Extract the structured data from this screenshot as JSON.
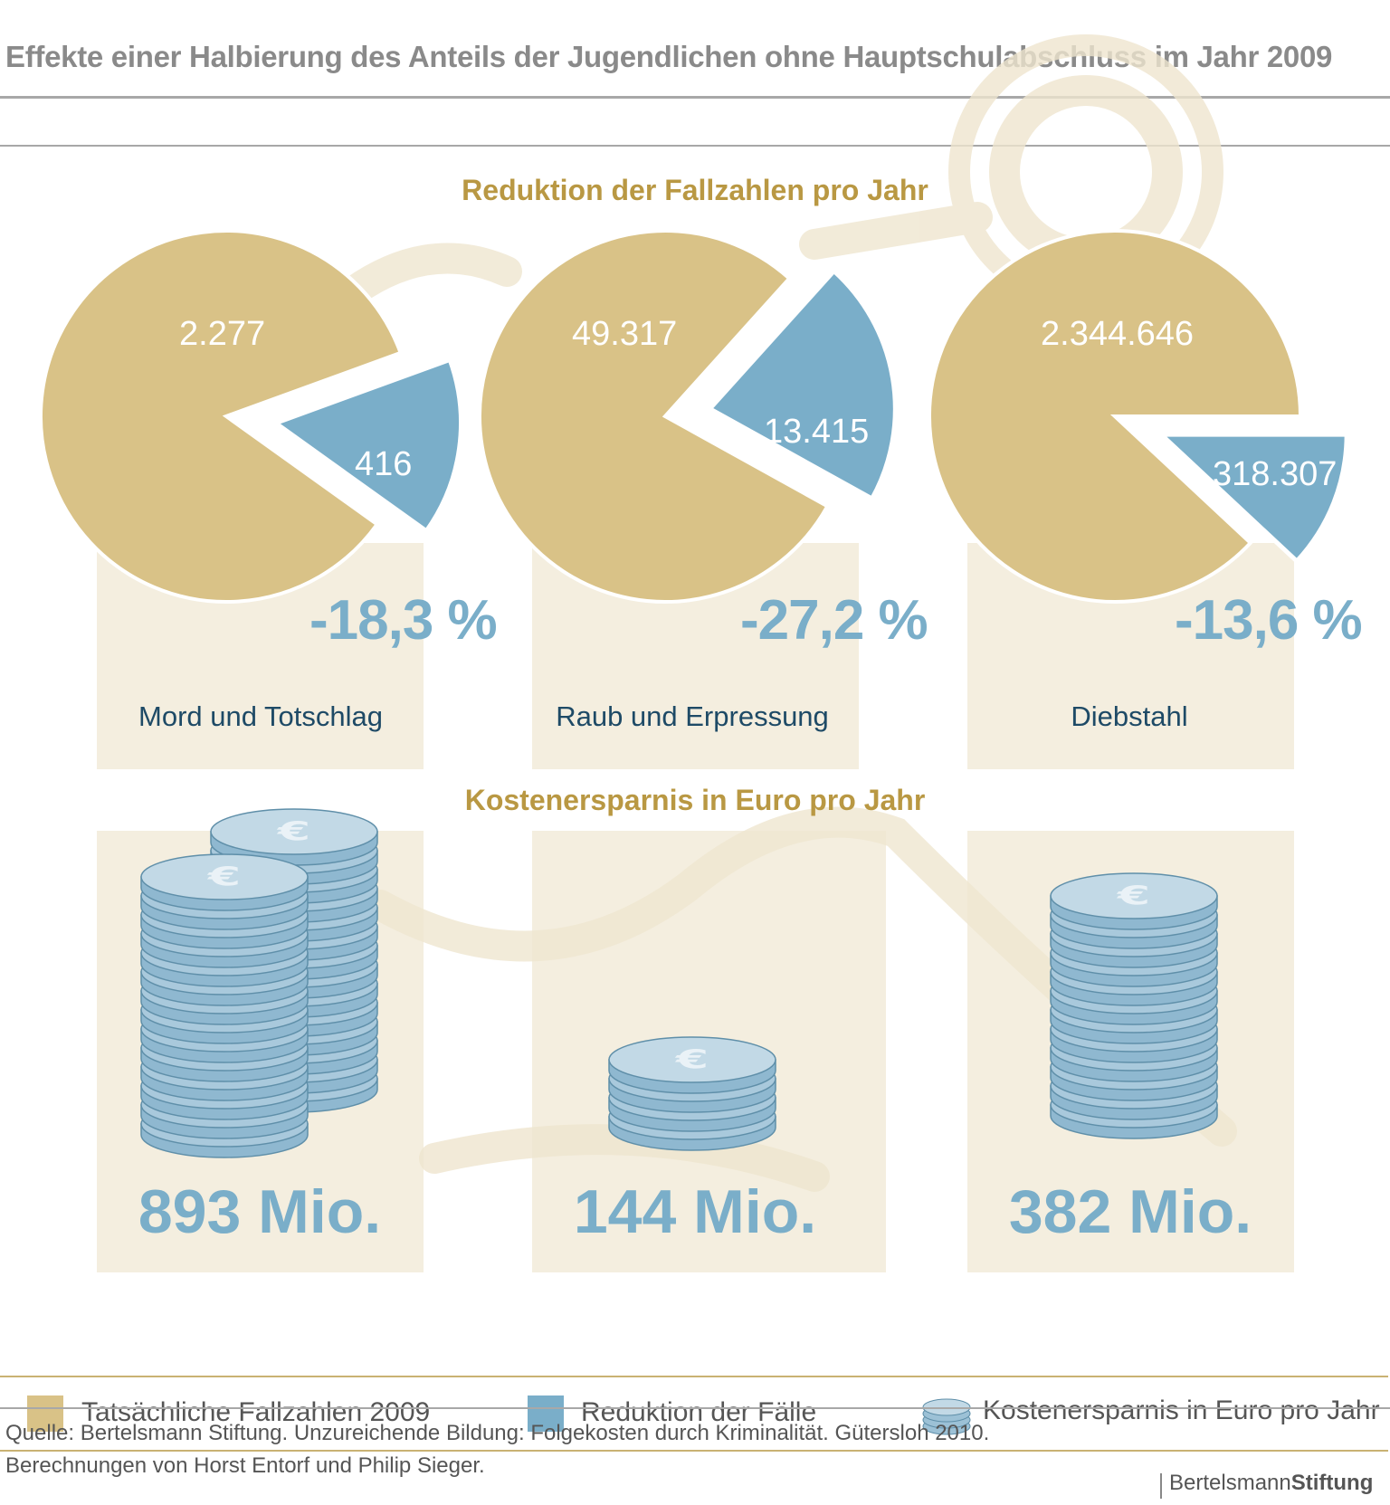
{
  "title": "Effekte einer Halbierung des Anteils der Jugendlichen ohne Hauptschulabschluss im Jahr 2009",
  "section1_title": "Reduktion der Fallzahlen pro Jahr",
  "section2_title": "Kostenersparnis in Euro pro Jahr",
  "colors": {
    "actual": "#d9c287",
    "reduction": "#7aaec9",
    "percent": "#7aaec9",
    "category": "#1e4a66",
    "heading": "#b99843"
  },
  "chart_data": [
    {
      "type": "pie",
      "title": "Mord und Totschlag",
      "labels": [
        "Tatsächliche Fallzahlen 2009",
        "Reduktion der Fälle"
      ],
      "values": [
        2277,
        416
      ],
      "value_labels": [
        "2.277",
        "416"
      ],
      "percent_label": "-18,3 %"
    },
    {
      "type": "pie",
      "title": "Raub und Erpressung",
      "labels": [
        "Tatsächliche Fallzahlen 2009",
        "Reduktion der Fälle"
      ],
      "values": [
        49317,
        13415
      ],
      "value_labels": [
        "49.317",
        "13.415"
      ],
      "percent_label": "-27,2 %"
    },
    {
      "type": "pie",
      "title": "Diebstahl",
      "labels": [
        "Tatsächliche Fallzahlen 2009",
        "Reduktion der Fälle"
      ],
      "values": [
        2344646,
        318307
      ],
      "value_labels": [
        "2.344.646",
        "318.307"
      ],
      "percent_label": "-13,6 %"
    },
    {
      "type": "bar",
      "title": "Kostenersparnis in Euro pro Jahr",
      "categories": [
        "Mord und Totschlag",
        "Raub und Erpressung",
        "Diebstahl"
      ],
      "values": [
        893,
        144,
        382
      ],
      "value_labels": [
        "893 Mio.",
        "144 Mio.",
        "382 Mio."
      ]
    }
  ],
  "legend": {
    "actual": "Tatsächliche Fallzahlen 2009",
    "reduction": "Reduktion der Fälle",
    "cost": "Kostenersparnis in Euro pro Jahr"
  },
  "source_line1": "Quelle: Bertelsmann Stiftung. Unzureichende Bildung: Folgekosten durch Kriminalität. Gütersloh 2010.",
  "source_line2": "Berechnungen von Horst Entorf und Philip Sieger.",
  "logo": {
    "part1": "Bertelsmann",
    "part2": "Stiftung"
  }
}
